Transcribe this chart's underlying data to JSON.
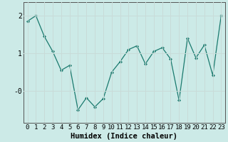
{
  "x": [
    0,
    1,
    2,
    3,
    4,
    5,
    6,
    7,
    8,
    9,
    10,
    11,
    12,
    13,
    14,
    15,
    16,
    17,
    18,
    19,
    20,
    21,
    22,
    23
  ],
  "y": [
    1.85,
    2.0,
    1.45,
    1.05,
    0.55,
    0.68,
    -0.5,
    -0.18,
    -0.42,
    -0.2,
    0.5,
    0.78,
    1.1,
    1.2,
    0.72,
    1.05,
    1.15,
    0.85,
    -0.25,
    1.4,
    0.88,
    1.22,
    0.42,
    2.0
  ],
  "line_color": "#1a7a6e",
  "marker": "D",
  "marker_size": 2.0,
  "bg_color": "#cceae7",
  "grid_color": "#c8dbd8",
  "xlabel": "Humidex (Indice chaleur)",
  "ylabel": "",
  "title": "",
  "xlim": [
    -0.5,
    23.5
  ],
  "ylim": [
    -0.85,
    2.35
  ],
  "ytick_labels": [
    "-0",
    "1",
    "2"
  ],
  "ytick_vals": [
    0.0,
    1.0,
    2.0
  ],
  "xtick_labels": [
    "0",
    "1",
    "2",
    "3",
    "4",
    "5",
    "6",
    "7",
    "8",
    "9",
    "10",
    "11",
    "12",
    "13",
    "14",
    "15",
    "16",
    "17",
    "18",
    "19",
    "20",
    "21",
    "22",
    "23"
  ],
  "font_size": 6.5,
  "xlabel_size": 7.5
}
